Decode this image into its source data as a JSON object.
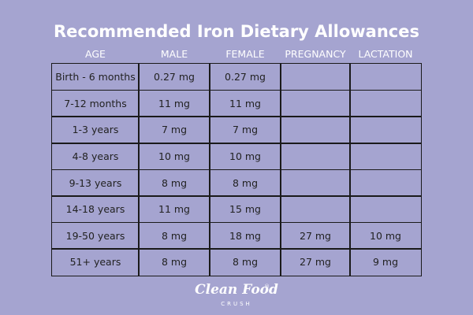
{
  "title": "Recommended Iron Dietary Allowances",
  "table": {
    "headers": [
      "AGE",
      "MALE",
      "FEMALE",
      "PREGNANCY",
      "LACTATION"
    ],
    "rows": [
      [
        "Birth - 6 months",
        "0.27 mg",
        "0.27 mg"
      ],
      [
        "7-12 months",
        "11 mg",
        "11 mg"
      ],
      [
        "1-3 years",
        "7 mg",
        "7 mg"
      ],
      [
        "4-8 years",
        "10 mg",
        "10 mg"
      ],
      [
        "9-13 years",
        "8 mg",
        "8 mg"
      ],
      [
        "14-18 years",
        "11 mg",
        "15 mg"
      ],
      [
        "19-50 years",
        "8 mg",
        "18 mg",
        "27 mg",
        "10 mg"
      ],
      [
        "51+ years",
        "8 mg",
        "8 mg",
        "27 mg",
        "9 mg"
      ]
    ]
  },
  "logo": {
    "name": "Clean Food",
    "mark": "®",
    "tagline": "CRUSH"
  }
}
